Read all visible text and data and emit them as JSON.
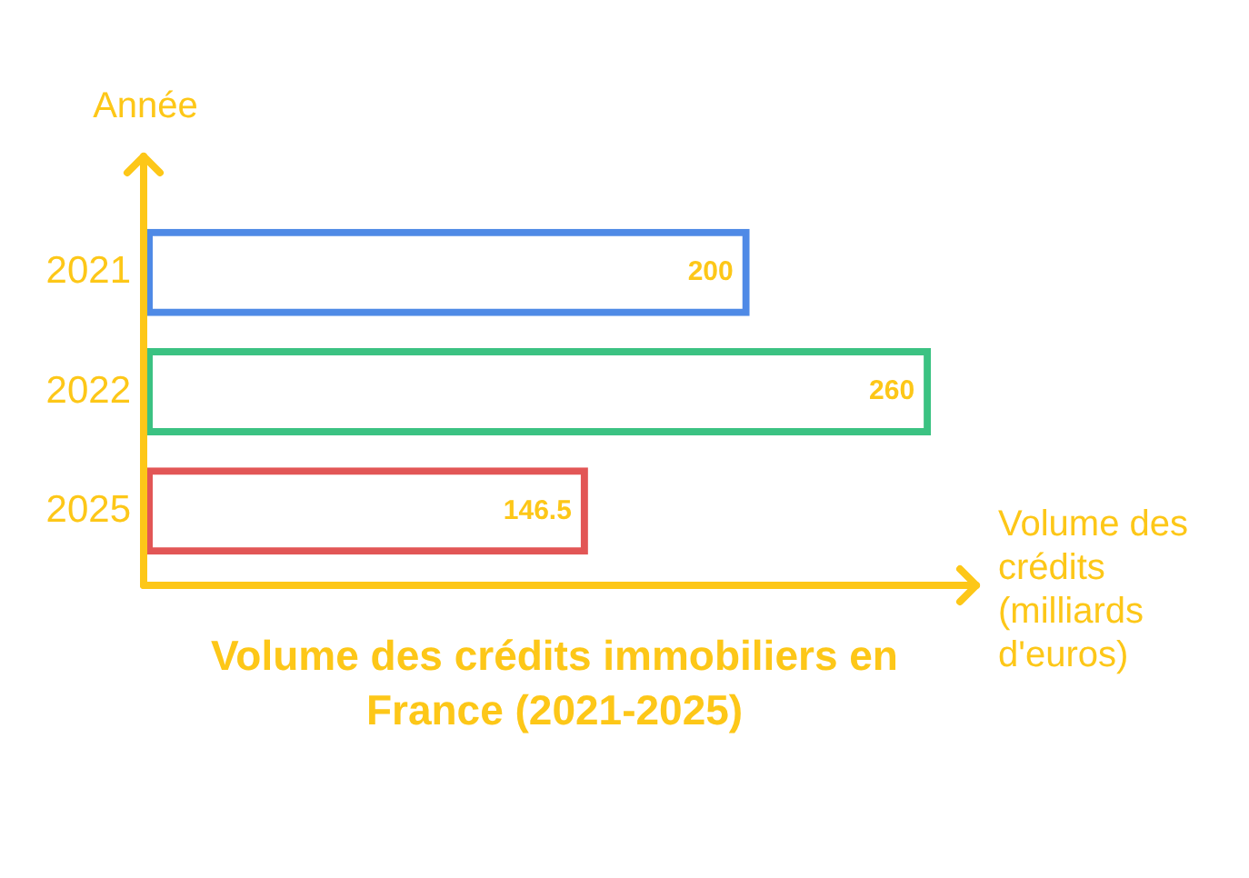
{
  "chart_data": {
    "type": "bar",
    "orientation": "horizontal",
    "title": "Volume des crédits immobiliers en France (2021-2025)",
    "xlabel": "Volume des crédits (milliards d'euros)",
    "ylabel": "Année",
    "categories": [
      "2021",
      "2022",
      "2025"
    ],
    "values": [
      200,
      260,
      146.5
    ],
    "colors": [
      "#4f8ae6",
      "#3bc282",
      "#e25656"
    ],
    "data_labels": true,
    "xlim": [
      0,
      275
    ],
    "tick_labels": "y",
    "grid": false,
    "legend": false
  }
}
